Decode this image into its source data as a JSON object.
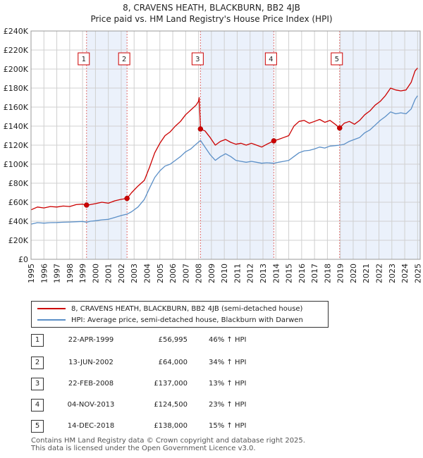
{
  "chart_data": {
    "type": "line",
    "title": "8, CRAVENS HEATH, BLACKBURN, BB2 4JB",
    "subtitle": "Price paid vs. HM Land Registry's House Price Index (HPI)",
    "xlim": [
      1995,
      2025.2
    ],
    "ylim": [
      0,
      240000
    ],
    "x_ticks": [
      "1995",
      "1996",
      "1997",
      "1998",
      "1999",
      "2000",
      "2001",
      "2002",
      "2003",
      "2004",
      "2005",
      "2006",
      "2007",
      "2008",
      "2009",
      "2010",
      "2011",
      "2012",
      "2013",
      "2014",
      "2015",
      "2016",
      "2017",
      "2018",
      "2019",
      "2020",
      "2021",
      "2022",
      "2023",
      "2024",
      "2025"
    ],
    "y_ticks": [
      {
        "value": 0,
        "label": "£0"
      },
      {
        "value": 20000,
        "label": "£20K"
      },
      {
        "value": 40000,
        "label": "£40K"
      },
      {
        "value": 60000,
        "label": "£60K"
      },
      {
        "value": 80000,
        "label": "£80K"
      },
      {
        "value": 100000,
        "label": "£100K"
      },
      {
        "value": 120000,
        "label": "£120K"
      },
      {
        "value": 140000,
        "label": "£140K"
      },
      {
        "value": 160000,
        "label": "£160K"
      },
      {
        "value": 180000,
        "label": "£180K"
      },
      {
        "value": 200000,
        "label": "£200K"
      },
      {
        "value": 220000,
        "label": "£220K"
      },
      {
        "value": 240000,
        "label": "£240K"
      }
    ],
    "grid": true,
    "shaded_spans": [
      [
        1999.31,
        2002.45
      ],
      [
        2008.15,
        2013.84
      ],
      [
        2018.95,
        2025.2
      ]
    ],
    "series": [
      {
        "name": "8, CRAVENS HEATH, BLACKBURN, BB2 4JB (semi-detached house)",
        "color": "#cc0000",
        "points": [
          [
            1995.0,
            52000
          ],
          [
            1995.5,
            55000
          ],
          [
            1996.0,
            54000
          ],
          [
            1996.5,
            55500
          ],
          [
            1997.0,
            55000
          ],
          [
            1997.5,
            56000
          ],
          [
            1998.0,
            55500
          ],
          [
            1998.5,
            57500
          ],
          [
            1999.0,
            58000
          ],
          [
            1999.31,
            57000
          ],
          [
            1999.6,
            57500
          ],
          [
            2000.0,
            58500
          ],
          [
            2000.5,
            60000
          ],
          [
            2001.0,
            59000
          ],
          [
            2001.5,
            61500
          ],
          [
            2002.0,
            63000
          ],
          [
            2002.45,
            64000
          ],
          [
            2002.8,
            70000
          ],
          [
            2003.3,
            77000
          ],
          [
            2003.8,
            83000
          ],
          [
            2004.2,
            97000
          ],
          [
            2004.6,
            112000
          ],
          [
            2005.0,
            122000
          ],
          [
            2005.4,
            130000
          ],
          [
            2005.8,
            134000
          ],
          [
            2006.2,
            140000
          ],
          [
            2006.6,
            145000
          ],
          [
            2007.0,
            152000
          ],
          [
            2007.4,
            157000
          ],
          [
            2007.8,
            162000
          ],
          [
            2008.0,
            166000
          ],
          [
            2008.05,
            170000
          ],
          [
            2008.15,
            137000
          ],
          [
            2008.5,
            135000
          ],
          [
            2008.9,
            128000
          ],
          [
            2009.3,
            120000
          ],
          [
            2009.7,
            124000
          ],
          [
            2010.1,
            126000
          ],
          [
            2010.5,
            123000
          ],
          [
            2010.9,
            121000
          ],
          [
            2011.3,
            122000
          ],
          [
            2011.7,
            120000
          ],
          [
            2012.1,
            122000
          ],
          [
            2012.5,
            120000
          ],
          [
            2012.9,
            118000
          ],
          [
            2013.3,
            121000
          ],
          [
            2013.84,
            124500
          ],
          [
            2014.2,
            126000
          ],
          [
            2014.6,
            128000
          ],
          [
            2015.0,
            130000
          ],
          [
            2015.4,
            140000
          ],
          [
            2015.8,
            145000
          ],
          [
            2016.2,
            146000
          ],
          [
            2016.6,
            143000
          ],
          [
            2017.0,
            145000
          ],
          [
            2017.4,
            147000
          ],
          [
            2017.8,
            144000
          ],
          [
            2018.2,
            146000
          ],
          [
            2018.6,
            142000
          ],
          [
            2018.95,
            138000
          ],
          [
            2019.3,
            143000
          ],
          [
            2019.7,
            145000
          ],
          [
            2020.1,
            142000
          ],
          [
            2020.5,
            146000
          ],
          [
            2020.9,
            152000
          ],
          [
            2021.3,
            156000
          ],
          [
            2021.7,
            162000
          ],
          [
            2022.1,
            166000
          ],
          [
            2022.5,
            172000
          ],
          [
            2022.9,
            180000
          ],
          [
            2023.3,
            178000
          ],
          [
            2023.7,
            177000
          ],
          [
            2024.1,
            178000
          ],
          [
            2024.5,
            186000
          ],
          [
            2024.8,
            198000
          ],
          [
            2025.0,
            201000
          ]
        ]
      },
      {
        "name": "HPI: Average price, semi-detached house, Blackburn with Darwen",
        "color": "#5b8fc7",
        "points": [
          [
            1995.0,
            37000
          ],
          [
            1995.5,
            38500
          ],
          [
            1996.0,
            38000
          ],
          [
            1996.5,
            38500
          ],
          [
            1997.0,
            38700
          ],
          [
            1997.5,
            39000
          ],
          [
            1998.0,
            39200
          ],
          [
            1998.5,
            39500
          ],
          [
            1999.0,
            39800
          ],
          [
            1999.31,
            39000
          ],
          [
            1999.6,
            40000
          ],
          [
            2000.0,
            40500
          ],
          [
            2000.5,
            41500
          ],
          [
            2001.0,
            42000
          ],
          [
            2001.5,
            44000
          ],
          [
            2002.0,
            46000
          ],
          [
            2002.45,
            47500
          ],
          [
            2002.8,
            50000
          ],
          [
            2003.3,
            55000
          ],
          [
            2003.8,
            63000
          ],
          [
            2004.2,
            75000
          ],
          [
            2004.6,
            86000
          ],
          [
            2005.0,
            93000
          ],
          [
            2005.4,
            98000
          ],
          [
            2005.8,
            100000
          ],
          [
            2006.2,
            104000
          ],
          [
            2006.6,
            108000
          ],
          [
            2007.0,
            113000
          ],
          [
            2007.4,
            116000
          ],
          [
            2007.8,
            121000
          ],
          [
            2008.15,
            125000
          ],
          [
            2008.5,
            118000
          ],
          [
            2008.9,
            110000
          ],
          [
            2009.3,
            104000
          ],
          [
            2009.7,
            108000
          ],
          [
            2010.1,
            111000
          ],
          [
            2010.5,
            108000
          ],
          [
            2010.9,
            104000
          ],
          [
            2011.3,
            103000
          ],
          [
            2011.7,
            102000
          ],
          [
            2012.1,
            103000
          ],
          [
            2012.5,
            102000
          ],
          [
            2012.9,
            101000
          ],
          [
            2013.3,
            101500
          ],
          [
            2013.84,
            101000
          ],
          [
            2014.2,
            102000
          ],
          [
            2014.6,
            103000
          ],
          [
            2015.0,
            104000
          ],
          [
            2015.4,
            108000
          ],
          [
            2015.8,
            112000
          ],
          [
            2016.2,
            114000
          ],
          [
            2016.6,
            114500
          ],
          [
            2017.0,
            116000
          ],
          [
            2017.4,
            118000
          ],
          [
            2017.8,
            117000
          ],
          [
            2018.2,
            119000
          ],
          [
            2018.6,
            119500
          ],
          [
            2018.95,
            120000
          ],
          [
            2019.3,
            121000
          ],
          [
            2019.7,
            124000
          ],
          [
            2020.1,
            126000
          ],
          [
            2020.5,
            128000
          ],
          [
            2020.9,
            133000
          ],
          [
            2021.3,
            136000
          ],
          [
            2021.7,
            141000
          ],
          [
            2022.1,
            146000
          ],
          [
            2022.5,
            150000
          ],
          [
            2022.9,
            155000
          ],
          [
            2023.3,
            153000
          ],
          [
            2023.7,
            154000
          ],
          [
            2024.1,
            153000
          ],
          [
            2024.5,
            158000
          ],
          [
            2024.8,
            168000
          ],
          [
            2025.0,
            172000
          ]
        ]
      }
    ],
    "sales": [
      {
        "n": "1",
        "x": 1999.31,
        "y": 56995
      },
      {
        "n": "2",
        "x": 2002.45,
        "y": 64000
      },
      {
        "n": "3",
        "x": 2008.15,
        "y": 137000
      },
      {
        "n": "4",
        "x": 2013.84,
        "y": 124500
      },
      {
        "n": "5",
        "x": 2018.95,
        "y": 138000
      }
    ]
  },
  "legend": {
    "entries": [
      {
        "label": "8, CRAVENS HEATH, BLACKBURN, BB2 4JB (semi-detached house)",
        "color": "#cc0000"
      },
      {
        "label": "HPI: Average price, semi-detached house, Blackburn with Darwen",
        "color": "#5b8fc7"
      }
    ]
  },
  "transactions": [
    {
      "n": "1",
      "date": "22-APR-1999",
      "price": "£56,995",
      "hpi": "46% ↑ HPI"
    },
    {
      "n": "2",
      "date": "13-JUN-2002",
      "price": "£64,000",
      "hpi": "34% ↑ HPI"
    },
    {
      "n": "3",
      "date": "22-FEB-2008",
      "price": "£137,000",
      "hpi": "13% ↑ HPI"
    },
    {
      "n": "4",
      "date": "04-NOV-2013",
      "price": "£124,500",
      "hpi": "23% ↑ HPI"
    },
    {
      "n": "5",
      "date": "14-DEC-2018",
      "price": "£138,000",
      "hpi": "15% ↑ HPI"
    }
  ],
  "footer": {
    "line1": "Contains HM Land Registry data © Crown copyright and database right 2025.",
    "line2": "This data is licensed under the Open Government Licence v3.0."
  }
}
